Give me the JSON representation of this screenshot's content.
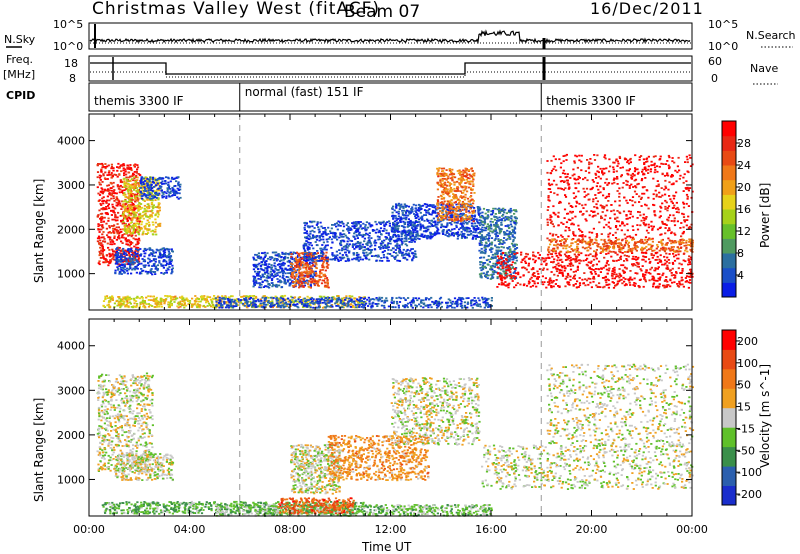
{
  "header": {
    "station": "Christmas Valley West (fitACF)",
    "beam": "Beam 07",
    "date": "16/Dec/2011"
  },
  "side_labels": {
    "nsky": "N.Sky",
    "freq": "Freq.",
    "freq_unit": "[MHz]",
    "cpid": "CPID",
    "nsearch": "N.Search",
    "nave": "Nave"
  },
  "small_axes": {
    "nsky_ticks": [
      "10^5",
      "10^0"
    ],
    "nsearch_ticks": [
      "10^5",
      "10^0"
    ],
    "freq_ticks": [
      "18",
      "8"
    ],
    "nave_ticks": [
      "60",
      "0"
    ]
  },
  "cpid_modes": [
    {
      "label": "themis 3300 IF",
      "start": 0.0,
      "end": 6.0
    },
    {
      "label": "normal (fast) 151 IF",
      "start": 6.0,
      "end": 18.0
    },
    {
      "label": "themis 3300 IF",
      "start": 18.0,
      "end": 24.0
    }
  ],
  "chart_data": [
    {
      "type": "heatmap",
      "title": "",
      "xlabel": "",
      "ylabel": "Slant Range [km]",
      "xlim": [
        0,
        24
      ],
      "ylim": [
        180,
        4600
      ],
      "yticks": [
        1000,
        2000,
        3000,
        4000
      ],
      "colorbar": {
        "label": "Power [dB]",
        "ticks": [
          "4",
          "8",
          "12",
          "16",
          "20",
          "24",
          "28"
        ],
        "colors": [
          "#0a1ee6",
          "#1a4fc8",
          "#2b6fa0",
          "#4f9a60",
          "#66c02a",
          "#a6d21a",
          "#e6d21a",
          "#f0a018",
          "#f07818",
          "#e84a14",
          "#e82814",
          "#ff0000"
        ]
      },
      "regions": [
        {
          "x": [
            0.3,
            2.0
          ],
          "y": [
            1200,
            3500
          ],
          "level": 0.92
        },
        {
          "x": [
            1.3,
            2.8
          ],
          "y": [
            1900,
            3200
          ],
          "level": 0.55
        },
        {
          "x": [
            2.0,
            3.6
          ],
          "y": [
            2700,
            3200
          ],
          "level": 0.1
        },
        {
          "x": [
            1.0,
            3.3
          ],
          "y": [
            1000,
            1600
          ],
          "level": 0.1
        },
        {
          "x": [
            0.5,
            11.0
          ],
          "y": [
            250,
            520
          ],
          "level": 0.55
        },
        {
          "x": [
            5.0,
            16.0
          ],
          "y": [
            250,
            480
          ],
          "level": 0.12
        },
        {
          "x": [
            6.5,
            9.0
          ],
          "y": [
            700,
            1500
          ],
          "level": 0.1
        },
        {
          "x": [
            8.0,
            9.5
          ],
          "y": [
            700,
            1500
          ],
          "level": 0.78
        },
        {
          "x": [
            8.5,
            13.0
          ],
          "y": [
            1300,
            2200
          ],
          "level": 0.1
        },
        {
          "x": [
            12.0,
            15.5
          ],
          "y": [
            1800,
            2600
          ],
          "level": 0.1
        },
        {
          "x": [
            13.8,
            15.3
          ],
          "y": [
            2200,
            3400
          ],
          "level": 0.72
        },
        {
          "x": [
            15.5,
            17.0
          ],
          "y": [
            900,
            2500
          ],
          "level": 0.2
        },
        {
          "x": [
            16.2,
            24.0
          ],
          "y": [
            700,
            1500
          ],
          "level": 0.98
        },
        {
          "x": [
            18.2,
            24.0
          ],
          "y": [
            1800,
            3700
          ],
          "level": 0.98
        },
        {
          "x": [
            18.2,
            24.0
          ],
          "y": [
            1500,
            1800
          ],
          "level": 0.75
        }
      ]
    },
    {
      "type": "heatmap",
      "title": "",
      "xlabel": "Time UT",
      "ylabel": "Slant Range [km]",
      "xlim": [
        0,
        24
      ],
      "ylim": [
        180,
        4600
      ],
      "yticks": [
        1000,
        2000,
        3000,
        4000
      ],
      "xticks": [
        "00:00",
        "04:00",
        "08:00",
        "12:00",
        "16:00",
        "20:00",
        "00:00"
      ],
      "colorbar": {
        "label": "Velocity [m s^-1]",
        "ticks": [
          "200",
          "100",
          "50",
          "15",
          "-15",
          "-50",
          "-100",
          "-200"
        ],
        "colors": [
          "#1a2ecc",
          "#2b5fae",
          "#3a8f4a",
          "#5fc02a",
          "#c8c8c8",
          "#f0a020",
          "#f07818",
          "#e84a14",
          "#ff0000"
        ]
      },
      "regions": [
        {
          "x": [
            0.3,
            2.5
          ],
          "y": [
            1200,
            3400
          ],
          "level": 0.5
        },
        {
          "x": [
            1.0,
            3.3
          ],
          "y": [
            1000,
            1600
          ],
          "level": 0.5
        },
        {
          "x": [
            0.5,
            11.0
          ],
          "y": [
            250,
            520
          ],
          "level": 0.35
        },
        {
          "x": [
            5.0,
            16.0
          ],
          "y": [
            200,
            450
          ],
          "level": 0.4
        },
        {
          "x": [
            7.5,
            10.5
          ],
          "y": [
            250,
            600
          ],
          "level": 0.78
        },
        {
          "x": [
            8.0,
            10.0
          ],
          "y": [
            700,
            1800
          ],
          "level": 0.5
        },
        {
          "x": [
            9.5,
            13.5
          ],
          "y": [
            1000,
            2000
          ],
          "level": 0.66
        },
        {
          "x": [
            12.0,
            15.5
          ],
          "y": [
            1800,
            3300
          ],
          "level": 0.5
        },
        {
          "x": [
            15.6,
            24.0
          ],
          "y": [
            800,
            1800
          ],
          "level": 0.5
        },
        {
          "x": [
            18.2,
            24.0
          ],
          "y": [
            1800,
            3600
          ],
          "level": 0.5
        }
      ]
    }
  ]
}
